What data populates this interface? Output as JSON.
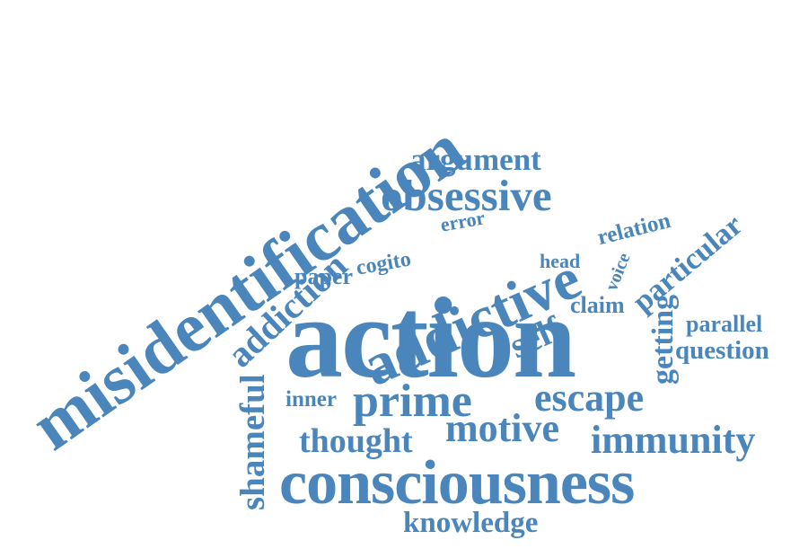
{
  "word_cloud": {
    "color": "#4a86bb",
    "words": {
      "misidentification": "misidentification",
      "action": "action",
      "consciousness": "consciousness",
      "addictive": "addictive",
      "obsessive": "obsessive",
      "addiction": "addiction",
      "shameful": "shameful",
      "prime": "prime",
      "escape": "escape",
      "motive": "motive",
      "immunity": "immunity",
      "thought": "thought",
      "argument": "argument",
      "knowledge": "knowledge",
      "self": "self",
      "particular": "particular",
      "getting": "getting",
      "question": "question",
      "parallel": "parallel",
      "cogito": "cogito",
      "paper": "paper",
      "inner": "inner",
      "relation": "relation",
      "error": "error",
      "head": "head",
      "voice": "voice",
      "claim": "claim"
    }
  }
}
